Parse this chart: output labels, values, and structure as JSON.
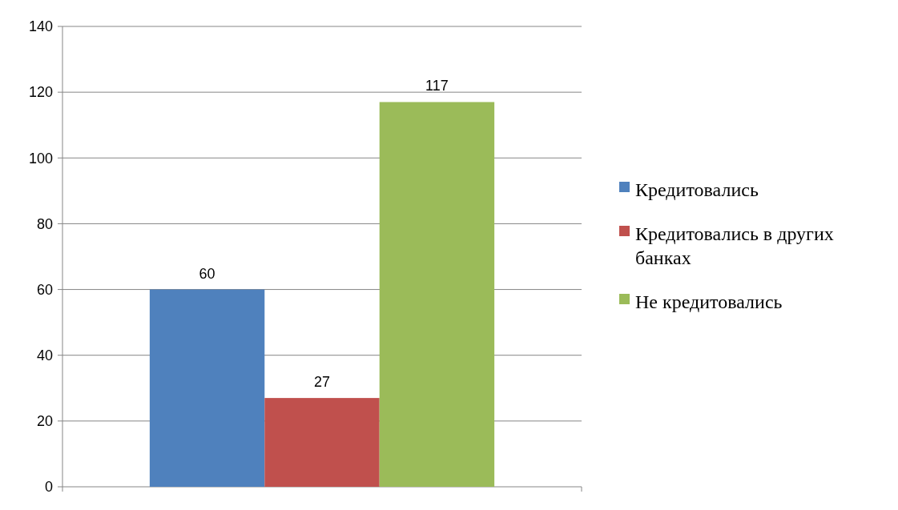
{
  "chart_data": {
    "type": "bar",
    "categories": [
      null
    ],
    "series": [
      {
        "name": "Кредитовались",
        "color": "#4f81bd",
        "values": [
          60
        ]
      },
      {
        "name": "Кредитовались в других банках",
        "color": "#c0504d",
        "values": [
          27
        ]
      },
      {
        "name": "Не кредитовались",
        "color": "#9bbb59",
        "values": [
          117
        ]
      }
    ],
    "ylim": [
      0,
      140
    ],
    "yticks": [
      0,
      20,
      40,
      60,
      80,
      100,
      120,
      140
    ],
    "grid": "y",
    "legend": "right",
    "data_labels": true
  }
}
